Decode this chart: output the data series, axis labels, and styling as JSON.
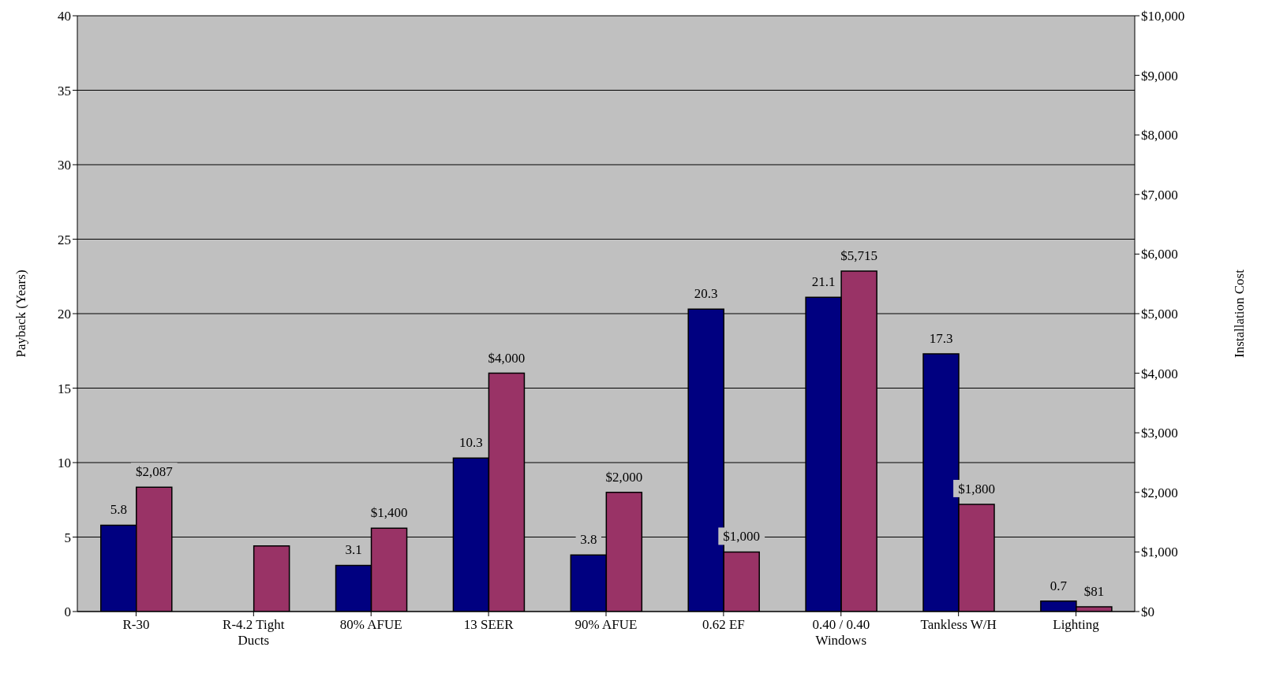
{
  "chart_data": {
    "type": "bar",
    "categories": [
      "R-30",
      "R-4.2 Tight Ducts",
      "80%  AFUE",
      "13 SEER",
      "90%  AFUE",
      "0.62 EF",
      "0.40 / 0.40 Windows",
      "Tankless W/H",
      "Lighting"
    ],
    "series": [
      {
        "color": "#000080",
        "values": [
          5.8,
          null,
          3.1,
          10.3,
          3.8,
          20.3,
          21.1,
          17.3,
          0.7
        ],
        "value_labels": [
          "5.8",
          null,
          "3.1",
          "10.3",
          "3.8",
          "20.3",
          "21.1",
          "17.3",
          "0.7"
        ]
      },
      {
        "color": "#993366",
        "axis": "y2",
        "values": [
          2087,
          1100,
          1400,
          4000,
          2000,
          1000,
          5715,
          1800,
          81
        ],
        "value_labels": [
          "$2,087",
          null,
          "$1,400",
          "$4,000",
          "$2,000",
          "$1,000",
          "$5,715",
          "$1,800",
          "$81"
        ]
      }
    ],
    "ylabel": "Payback (Years)",
    "y2label": "Installation Cost",
    "ylim": [
      0,
      40
    ],
    "yticks": [
      0,
      5,
      10,
      15,
      20,
      25,
      30,
      35,
      40
    ],
    "y2lim": [
      0,
      10000
    ],
    "y2ticks": [
      {
        "value": 0,
        "label": "$0"
      },
      {
        "value": 1000,
        "label": "$1,000"
      },
      {
        "value": 2000,
        "label": "$2,000"
      },
      {
        "value": 3000,
        "label": "$3,000"
      },
      {
        "value": 4000,
        "label": "$4,000"
      },
      {
        "value": 5000,
        "label": "$5,000"
      },
      {
        "value": 6000,
        "label": "$6,000"
      },
      {
        "value": 7000,
        "label": "$7,000"
      },
      {
        "value": 8000,
        "label": "$8,000"
      },
      {
        "value": 9000,
        "label": "$9,000"
      },
      {
        "value": 10000,
        "label": "$10,000"
      }
    ],
    "grid": "y",
    "legend": false
  }
}
